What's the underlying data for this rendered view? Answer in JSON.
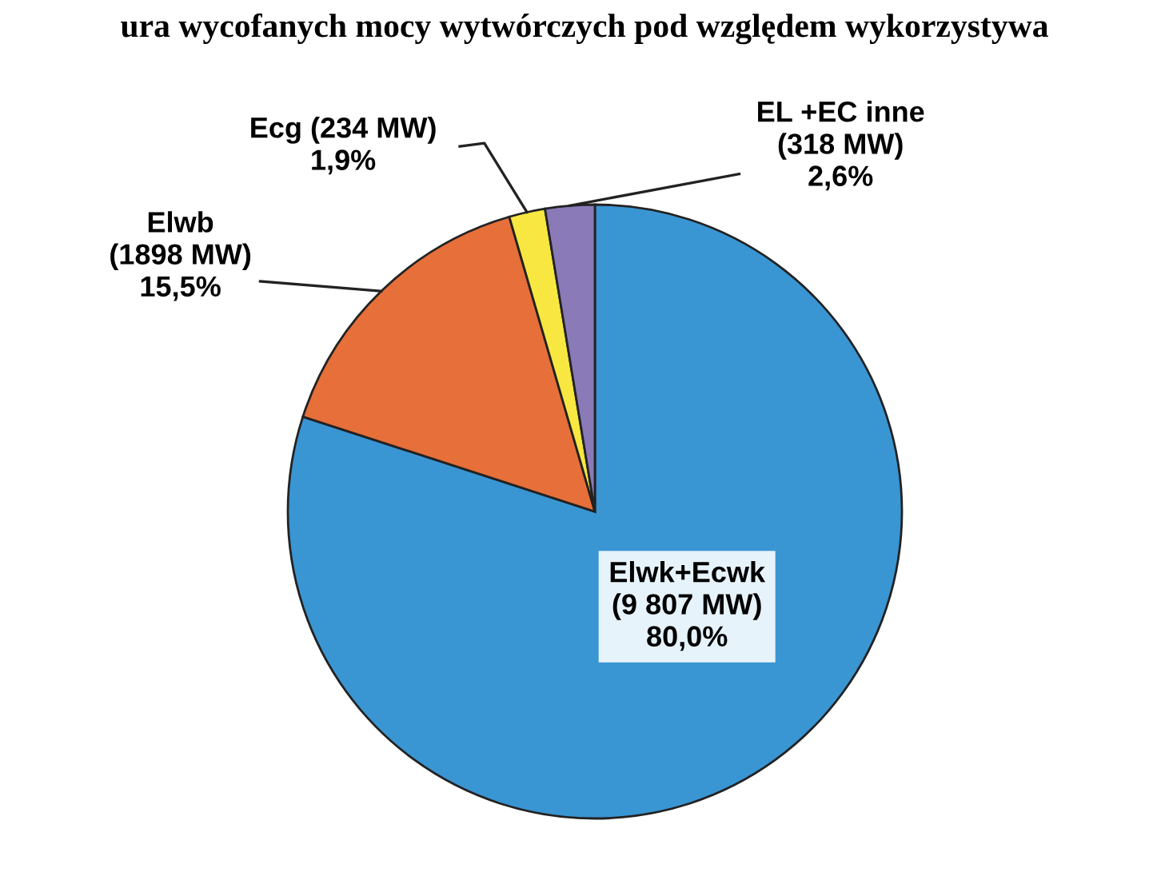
{
  "chart_data": {
    "type": "pie",
    "title": "ura wycofanych mocy wytwórczych pod względem wykorzystywa",
    "categories": [
      "Elwk+Ecwk\n(9 807 MW)\n80,0%",
      "Elwb\n(1898 MW)\n15,5%",
      "Ecg (234 MW)\n1,9%",
      "EL +EC inne\n(318 MW)\n2,6%"
    ],
    "values": [
      80.0,
      15.5,
      1.9,
      2.6
    ],
    "colors": [
      "#3a95d3",
      "#e66f3a",
      "#f7e740",
      "#8a7ab8"
    ],
    "legend": false
  }
}
